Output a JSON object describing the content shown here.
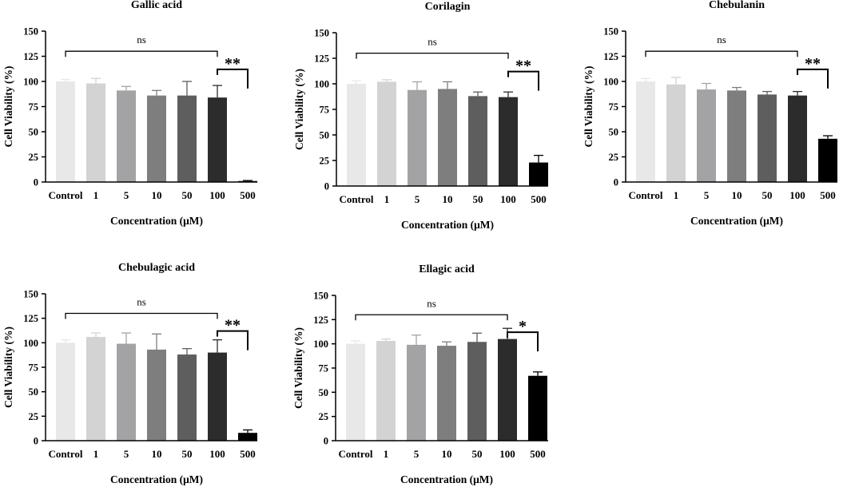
{
  "chart_data": [
    {
      "type": "bar",
      "title": "Gallic acid",
      "xlabel": "Concentration (μM)",
      "ylabel": "Cell Viability (%)",
      "ylim": [
        0,
        150
      ],
      "yticks": [
        "0",
        "25",
        "50",
        "75",
        "100",
        "125",
        "150"
      ],
      "categories": [
        "Control",
        "1",
        "5",
        "10",
        "50",
        "100",
        "500"
      ],
      "values": [
        100,
        98,
        91,
        86,
        86,
        84,
        1
      ],
      "errors": [
        2,
        5,
        4,
        5,
        14,
        12,
        0.5
      ],
      "colors": [
        "#e8e8e8",
        "#d3d3d3",
        "#a3a3a6",
        "#7e7e7e",
        "#5e5e5e",
        "#2c2c2c",
        "#000000"
      ],
      "annotations": [
        {
          "text": "ns",
          "from": 0,
          "to": 5
        },
        {
          "text": "**",
          "from": 5,
          "to": 6
        }
      ]
    },
    {
      "type": "bar",
      "title": "Corilagin",
      "xlabel": "Concentration (μM)",
      "ylabel": "Cell Viability (%)",
      "ylim": [
        0,
        150
      ],
      "yticks": [
        "0",
        "25",
        "50",
        "75",
        "100",
        "125",
        "150"
      ],
      "categories": [
        "Control",
        "1",
        "5",
        "10",
        "50",
        "100",
        "500"
      ],
      "values": [
        100,
        102,
        94,
        95,
        88,
        87,
        23
      ],
      "errors": [
        3,
        2,
        8,
        7,
        4,
        5,
        7
      ],
      "colors": [
        "#e8e8e8",
        "#d3d3d3",
        "#a3a3a6",
        "#7e7e7e",
        "#5e5e5e",
        "#2c2c2c",
        "#000000"
      ],
      "annotations": [
        {
          "text": "ns",
          "from": 0,
          "to": 5
        },
        {
          "text": "**",
          "from": 5,
          "to": 6
        }
      ]
    },
    {
      "type": "bar",
      "title": "Chebulanin",
      "xlabel": "Concentration (μM)",
      "ylabel": "Cell Viability (%)",
      "ylim": [
        0,
        150
      ],
      "yticks": [
        "0",
        "25",
        "50",
        "75",
        "100",
        "125",
        "150"
      ],
      "categories": [
        "Control",
        "1",
        "5",
        "10",
        "50",
        "100",
        "500"
      ],
      "values": [
        100,
        97,
        92,
        91,
        87,
        86,
        43
      ],
      "errors": [
        3,
        7,
        6,
        3,
        3,
        4,
        3
      ],
      "colors": [
        "#e8e8e8",
        "#d3d3d3",
        "#a3a3a6",
        "#7e7e7e",
        "#5e5e5e",
        "#2c2c2c",
        "#000000"
      ],
      "annotations": [
        {
          "text": "ns",
          "from": 0,
          "to": 5
        },
        {
          "text": "**",
          "from": 5,
          "to": 6
        }
      ]
    },
    {
      "type": "bar",
      "title": "Chebulagic acid",
      "xlabel": "Concentration (μM)",
      "ylabel": "Cell Viability (%)",
      "ylim": [
        0,
        150
      ],
      "yticks": [
        "0",
        "25",
        "50",
        "75",
        "100",
        "125",
        "150"
      ],
      "categories": [
        "Control",
        "1",
        "5",
        "10",
        "50",
        "100",
        "500"
      ],
      "values": [
        100,
        106,
        99,
        93,
        88,
        90,
        8
      ],
      "errors": [
        3,
        4,
        11,
        16,
        6,
        13,
        3
      ],
      "colors": [
        "#e8e8e8",
        "#d3d3d3",
        "#a3a3a6",
        "#7e7e7e",
        "#5e5e5e",
        "#2c2c2c",
        "#000000"
      ],
      "annotations": [
        {
          "text": "ns",
          "from": 0,
          "to": 5
        },
        {
          "text": "**",
          "from": 5,
          "to": 6
        }
      ]
    },
    {
      "type": "bar",
      "title": "Ellagic acid",
      "xlabel": "Concentration (μM)",
      "ylabel": "Cell Viability (%)",
      "ylim": [
        0,
        150
      ],
      "yticks": [
        "0",
        "25",
        "50",
        "75",
        "100",
        "125",
        "150"
      ],
      "categories": [
        "Control",
        "1",
        "5",
        "10",
        "50",
        "100",
        "500"
      ],
      "values": [
        100,
        103,
        99,
        98,
        102,
        105,
        67
      ],
      "errors": [
        3,
        2,
        10,
        4,
        9,
        11,
        4
      ],
      "colors": [
        "#e8e8e8",
        "#d3d3d3",
        "#a3a3a6",
        "#7e7e7e",
        "#5e5e5e",
        "#2c2c2c",
        "#000000"
      ],
      "annotations": [
        {
          "text": "ns",
          "from": 0,
          "to": 5
        },
        {
          "text": "*",
          "from": 5,
          "to": 6
        }
      ]
    }
  ]
}
